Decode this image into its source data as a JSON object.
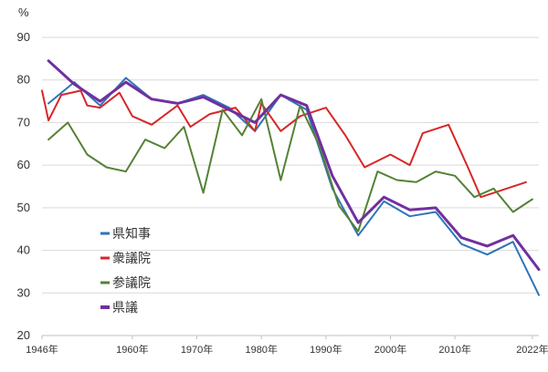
{
  "chart_data": {
    "type": "line",
    "ylabel": "%",
    "ylim": [
      20,
      90
    ],
    "yticks": [
      20,
      30,
      40,
      50,
      60,
      70,
      80,
      90
    ],
    "xlim": [
      1946,
      2023
    ],
    "xticks": [
      {
        "value": 1946,
        "label": "1946年"
      },
      {
        "value": 1960,
        "label": "1960年"
      },
      {
        "value": 1970,
        "label": "1970年"
      },
      {
        "value": 1980,
        "label": "1980年"
      },
      {
        "value": 1990,
        "label": "1990年"
      },
      {
        "value": 2000,
        "label": "2000年"
      },
      {
        "value": 2010,
        "label": "2010年"
      },
      {
        "value": 2022,
        "label": "2022年"
      }
    ],
    "grid": true,
    "legend": "lower-left",
    "series": [
      {
        "name": "県知事",
        "color": "#2e75b6",
        "points": [
          [
            1947,
            74.5
          ],
          [
            1951,
            79.5
          ],
          [
            1955,
            74.0
          ],
          [
            1959,
            80.5
          ],
          [
            1963,
            75.5
          ],
          [
            1967,
            74.5
          ],
          [
            1971,
            76.5
          ],
          [
            1975,
            73.5
          ],
          [
            1979,
            68.0
          ],
          [
            1983,
            76.5
          ],
          [
            1987,
            73.0
          ],
          [
            1991,
            54.5
          ],
          [
            1995,
            43.5
          ],
          [
            1999,
            51.5
          ],
          [
            2003,
            48.0
          ],
          [
            2007,
            49.0
          ],
          [
            2011,
            41.5
          ],
          [
            2015,
            39.0
          ],
          [
            2019,
            42.0
          ],
          [
            2023,
            29.5
          ]
        ]
      },
      {
        "name": "衆議院",
        "color": "#d62728",
        "points": [
          [
            1946,
            77.5
          ],
          [
            1947,
            70.5
          ],
          [
            1949,
            76.5
          ],
          [
            1952,
            77.5
          ],
          [
            1953,
            74.0
          ],
          [
            1955,
            73.5
          ],
          [
            1958,
            77.0
          ],
          [
            1960,
            71.5
          ],
          [
            1963,
            69.5
          ],
          [
            1967,
            74.0
          ],
          [
            1969,
            69.0
          ],
          [
            1972,
            72.0
          ],
          [
            1976,
            73.5
          ],
          [
            1979,
            68.0
          ],
          [
            1980,
            74.5
          ],
          [
            1983,
            68.0
          ],
          [
            1986,
            71.5
          ],
          [
            1990,
            73.5
          ],
          [
            1993,
            67.0
          ],
          [
            1996,
            59.5
          ],
          [
            2000,
            62.5
          ],
          [
            2003,
            60.0
          ],
          [
            2005,
            67.5
          ],
          [
            2009,
            69.5
          ],
          [
            2012,
            59.5
          ],
          [
            2014,
            52.5
          ],
          [
            2017,
            54.0
          ],
          [
            2021,
            56.0
          ]
        ]
      },
      {
        "name": "参議院",
        "color": "#548235",
        "points": [
          [
            1947,
            66.0
          ],
          [
            1950,
            70.0
          ],
          [
            1953,
            62.5
          ],
          [
            1956,
            59.5
          ],
          [
            1959,
            58.5
          ],
          [
            1962,
            66.0
          ],
          [
            1965,
            64.0
          ],
          [
            1968,
            69.0
          ],
          [
            1971,
            53.5
          ],
          [
            1974,
            73.0
          ],
          [
            1977,
            67.0
          ],
          [
            1980,
            75.5
          ],
          [
            1983,
            56.5
          ],
          [
            1986,
            74.0
          ],
          [
            1989,
            64.5
          ],
          [
            1992,
            50.5
          ],
          [
            1995,
            44.5
          ],
          [
            1998,
            58.5
          ],
          [
            2001,
            56.5
          ],
          [
            2004,
            56.0
          ],
          [
            2007,
            58.5
          ],
          [
            2010,
            57.5
          ],
          [
            2013,
            52.5
          ],
          [
            2016,
            54.5
          ],
          [
            2019,
            49.0
          ],
          [
            2022,
            52.0
          ]
        ]
      },
      {
        "name": "県議",
        "color": "#7030a0",
        "points": [
          [
            1947,
            84.5
          ],
          [
            1951,
            79.0
          ],
          [
            1955,
            75.0
          ],
          [
            1959,
            79.5
          ],
          [
            1963,
            75.5
          ],
          [
            1967,
            74.5
          ],
          [
            1971,
            76.0
          ],
          [
            1975,
            73.0
          ],
          [
            1979,
            70.0
          ],
          [
            1983,
            76.5
          ],
          [
            1987,
            74.0
          ],
          [
            1991,
            57.5
          ],
          [
            1995,
            46.5
          ],
          [
            1999,
            52.5
          ],
          [
            2003,
            49.5
          ],
          [
            2007,
            50.0
          ],
          [
            2011,
            43.0
          ],
          [
            2015,
            41.0
          ],
          [
            2019,
            43.5
          ],
          [
            2023,
            35.5
          ]
        ]
      }
    ]
  }
}
